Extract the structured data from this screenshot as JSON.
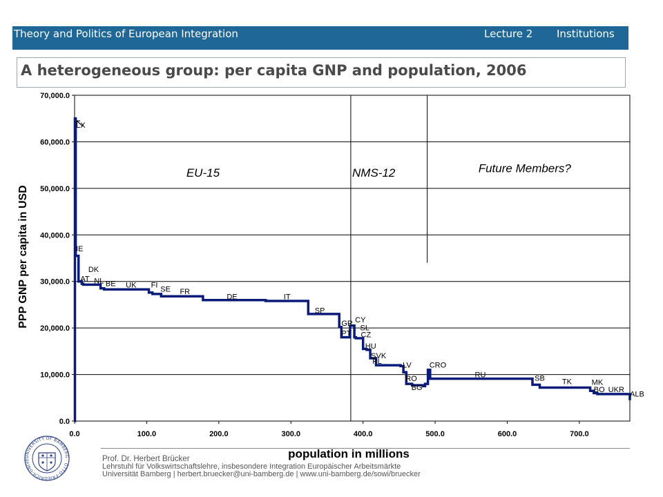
{
  "header": {
    "course": "Theory and Politics of European Integration",
    "lecture": "Lecture 2",
    "section": "Institutions"
  },
  "slide_title": "A heterogeneous group: per capita GNP and population, 2006",
  "footer": {
    "author": "Prof. Dr. Herbert Brücker",
    "chair": "Lehrstuhl für Volkswirtschaftslehre, insbesondere Integration Europäischer Arbeitsmärkte",
    "contact": "Universität Bamberg | herbert.bruecker@uni-bamberg.de | www.uni-bamberg.de/sowi/bruecker"
  },
  "logo": {
    "text": "UNIVERSITY OF BAMBERG · OTTO-FRIEDRICH-UNIVERSITÄT BAMBERG",
    "color": "#2a3f8a"
  },
  "colors": {
    "header_bg": "#1f6797",
    "series": "#0b1b7a",
    "title": "#4a4a4a"
  },
  "chart_data": {
    "type": "line",
    "title": "",
    "xlabel": "population in millions",
    "ylabel": "PPP GNP per capita in USD",
    "xlim": [
      0,
      770
    ],
    "ylim": [
      0,
      70000
    ],
    "x_ticks": [
      "0.0",
      "100.0",
      "200.0",
      "300.0",
      "400.0",
      "500.0",
      "600.0",
      "700.0"
    ],
    "y_ticks": [
      "0.0",
      "10,000.0",
      "20,000.0",
      "30,000.0",
      "40,000.0",
      "50,000.0",
      "60,000.0",
      "70,000.0"
    ],
    "grid": true,
    "region_labels": [
      {
        "text": "EU-15",
        "x": 155,
        "y": 52500
      },
      {
        "text": "NMS-12",
        "x": 385,
        "y": 52500
      },
      {
        "text": "Future Members?",
        "x": 560,
        "y": 53500
      }
    ],
    "dividers": [
      {
        "x": 383
      },
      {
        "x": 489
      }
    ],
    "series": [
      {
        "x": [
          0,
          0.5,
          0.5,
          1.5,
          1.5,
          5.5,
          5.5,
          10,
          10,
          12,
          12,
          36,
          36,
          41,
          41,
          103,
          103,
          108,
          108,
          120,
          120,
          178,
          178,
          265,
          265,
          324,
          324,
          367,
          367,
          370,
          370,
          382,
          382,
          388,
          388,
          390,
          390,
          400,
          400,
          405,
          405,
          410,
          410,
          418,
          418,
          452,
          452,
          456,
          456,
          460,
          460,
          468,
          468,
          483,
          483,
          486,
          486,
          490,
          490,
          493,
          493,
          635,
          635,
          645,
          645,
          715,
          715,
          720,
          720,
          725,
          725,
          770,
          770
        ],
        "y": [
          0,
          0,
          65000,
          65000,
          35500,
          35500,
          30000,
          30000,
          29500,
          29500,
          29300,
          29300,
          28500,
          28500,
          28300,
          28300,
          27600,
          27600,
          27300,
          27300,
          26800,
          26800,
          26000,
          26000,
          25800,
          25800,
          23000,
          23000,
          20200,
          20200,
          18000,
          18000,
          20500,
          20500,
          18000,
          18000,
          17800,
          17800,
          15500,
          15500,
          15300,
          15300,
          13500,
          13500,
          12000,
          12000,
          11800,
          11800,
          10500,
          10500,
          8000,
          8000,
          7700,
          7700,
          7500,
          7500,
          8000,
          8000,
          11000,
          11000,
          9100,
          9100,
          7800,
          7800,
          7200,
          7200,
          6500,
          6500,
          6000,
          6000,
          5800,
          5800,
          4500
        ]
      }
    ],
    "point_labels": [
      {
        "text": "LX",
        "x": 2,
        "y": 63000
      },
      {
        "text": "IE",
        "x": 2,
        "y": 36500
      },
      {
        "text": "DK",
        "x": 19,
        "y": 32000
      },
      {
        "text": "AT",
        "x": 8,
        "y": 30000
      },
      {
        "text": "NL",
        "x": 27,
        "y": 29600
      },
      {
        "text": "BE",
        "x": 43,
        "y": 29000
      },
      {
        "text": "UK",
        "x": 71,
        "y": 28700
      },
      {
        "text": "FI",
        "x": 106,
        "y": 28700
      },
      {
        "text": "SE",
        "x": 119,
        "y": 27800
      },
      {
        "text": "FR",
        "x": 146,
        "y": 27300
      },
      {
        "text": "DE",
        "x": 211,
        "y": 26200
      },
      {
        "text": "IT",
        "x": 290,
        "y": 26200
      },
      {
        "text": "SP",
        "x": 333,
        "y": 23200
      },
      {
        "text": "GR",
        "x": 370,
        "y": 20500
      },
      {
        "text": "CY",
        "x": 389,
        "y": 21200
      },
      {
        "text": "SL",
        "x": 396,
        "y": 19500
      },
      {
        "text": "PT",
        "x": 370,
        "y": 18300
      },
      {
        "text": "CZ",
        "x": 397,
        "y": 18000
      },
      {
        "text": "HU",
        "x": 403,
        "y": 15600
      },
      {
        "text": "SVK",
        "x": 411,
        "y": 13500
      },
      {
        "text": "PL",
        "x": 413,
        "y": 12300
      },
      {
        "text": "LV",
        "x": 455,
        "y": 11500
      },
      {
        "text": "CRO",
        "x": 492,
        "y": 11500
      },
      {
        "text": "RO",
        "x": 459,
        "y": 8600
      },
      {
        "text": "BG",
        "x": 467,
        "y": 6700
      },
      {
        "text": "RU",
        "x": 555,
        "y": 9400
      },
      {
        "text": "SB",
        "x": 638,
        "y": 8700
      },
      {
        "text": "TK",
        "x": 676,
        "y": 7900
      },
      {
        "text": "MK",
        "x": 717,
        "y": 7800
      },
      {
        "text": "BO",
        "x": 720,
        "y": 6200
      },
      {
        "text": "UKR",
        "x": 740,
        "y": 6200
      },
      {
        "text": "ALB",
        "x": 770,
        "y": 5300
      }
    ]
  }
}
